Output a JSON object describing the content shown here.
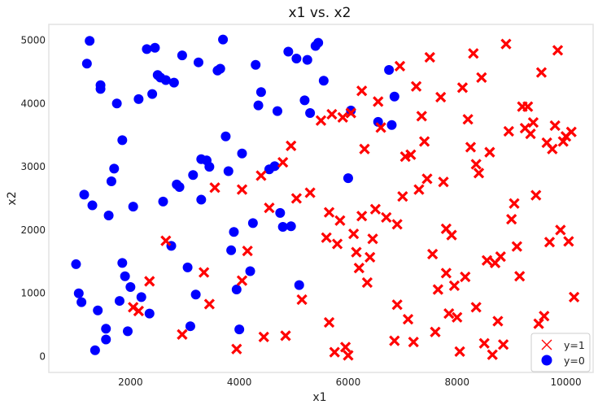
{
  "chart_data": {
    "type": "scatter",
    "title": "x1 vs. x2",
    "xlabel": "x1",
    "ylabel": "x2",
    "xlim": [
      500,
      10500
    ],
    "ylim": [
      -250,
      5250
    ],
    "xticks": [
      2000,
      4000,
      6000,
      8000,
      10000
    ],
    "yticks": [
      0,
      1000,
      2000,
      3000,
      4000,
      5000
    ],
    "grid": false,
    "legend_position": "lower-right",
    "series": [
      {
        "name": "y=1",
        "marker": "x",
        "color": "#ff0000",
        "points": [
          [
            2050,
            780
          ],
          [
            2150,
            720
          ],
          [
            2350,
            1190
          ],
          [
            2650,
            1830
          ],
          [
            2950,
            350
          ],
          [
            3350,
            1330
          ],
          [
            3450,
            830
          ],
          [
            3550,
            2670
          ],
          [
            3950,
            120
          ],
          [
            4050,
            2640
          ],
          [
            4050,
            1200
          ],
          [
            4150,
            1670
          ],
          [
            4400,
            2860
          ],
          [
            4450,
            310
          ],
          [
            4550,
            2350
          ],
          [
            4800,
            3070
          ],
          [
            4850,
            330
          ],
          [
            4950,
            3330
          ],
          [
            5050,
            2500
          ],
          [
            5150,
            900
          ],
          [
            5300,
            2590
          ],
          [
            5500,
            3730
          ],
          [
            5600,
            1880
          ],
          [
            5650,
            2280
          ],
          [
            5650,
            540
          ],
          [
            5700,
            3830
          ],
          [
            5750,
            70
          ],
          [
            5800,
            1780
          ],
          [
            5850,
            2150
          ],
          [
            5900,
            3780
          ],
          [
            5950,
            150
          ],
          [
            6000,
            20
          ],
          [
            6050,
            3850
          ],
          [
            6100,
            1940
          ],
          [
            6150,
            1650
          ],
          [
            6200,
            1400
          ],
          [
            6250,
            2220
          ],
          [
            6250,
            4200
          ],
          [
            6300,
            3280
          ],
          [
            6350,
            1170
          ],
          [
            6400,
            1570
          ],
          [
            6450,
            1860
          ],
          [
            6500,
            2330
          ],
          [
            6550,
            4030
          ],
          [
            6600,
            3620
          ],
          [
            6700,
            2200
          ],
          [
            6850,
            250
          ],
          [
            6900,
            820
          ],
          [
            6900,
            2090
          ],
          [
            6950,
            4590
          ],
          [
            7000,
            2530
          ],
          [
            7050,
            3160
          ],
          [
            7100,
            590
          ],
          [
            7150,
            3190
          ],
          [
            7200,
            230
          ],
          [
            7250,
            4270
          ],
          [
            7300,
            2640
          ],
          [
            7350,
            3800
          ],
          [
            7400,
            3400
          ],
          [
            7450,
            2810
          ],
          [
            7500,
            4730
          ],
          [
            7550,
            1620
          ],
          [
            7600,
            390
          ],
          [
            7650,
            1060
          ],
          [
            7700,
            4100
          ],
          [
            7750,
            2760
          ],
          [
            7800,
            2020
          ],
          [
            7800,
            1320
          ],
          [
            7850,
            680
          ],
          [
            7900,
            1920
          ],
          [
            7950,
            1120
          ],
          [
            8000,
            620
          ],
          [
            8050,
            80
          ],
          [
            8100,
            4250
          ],
          [
            8150,
            1260
          ],
          [
            8200,
            3750
          ],
          [
            8250,
            3310
          ],
          [
            8300,
            4790
          ],
          [
            8350,
            780
          ],
          [
            8350,
            3040
          ],
          [
            8400,
            2900
          ],
          [
            8450,
            4410
          ],
          [
            8500,
            210
          ],
          [
            8550,
            1520
          ],
          [
            8600,
            3230
          ],
          [
            8650,
            30
          ],
          [
            8700,
            1480
          ],
          [
            8750,
            560
          ],
          [
            8800,
            1580
          ],
          [
            8850,
            190
          ],
          [
            8900,
            4940
          ],
          [
            8950,
            3560
          ],
          [
            9000,
            2170
          ],
          [
            9050,
            2420
          ],
          [
            9100,
            1740
          ],
          [
            9150,
            1270
          ],
          [
            9200,
            3950
          ],
          [
            9250,
            3610
          ],
          [
            9300,
            3950
          ],
          [
            9350,
            3520
          ],
          [
            9400,
            3700
          ],
          [
            9450,
            2550
          ],
          [
            9500,
            520
          ],
          [
            9550,
            4490
          ],
          [
            9600,
            640
          ],
          [
            9650,
            3380
          ],
          [
            9700,
            1810
          ],
          [
            9750,
            3280
          ],
          [
            9800,
            3650
          ],
          [
            9850,
            4840
          ],
          [
            9900,
            2000
          ],
          [
            9950,
            3400
          ],
          [
            10000,
            3480
          ],
          [
            10050,
            1820
          ],
          [
            10100,
            3550
          ],
          [
            10150,
            940
          ]
        ]
      },
      {
        "name": "y=0",
        "marker": "o",
        "color": "#0000ff",
        "points": [
          [
            1000,
            1460
          ],
          [
            1050,
            1000
          ],
          [
            1100,
            860
          ],
          [
            1150,
            2560
          ],
          [
            1200,
            4630
          ],
          [
            1250,
            4990
          ],
          [
            1300,
            2390
          ],
          [
            1350,
            100
          ],
          [
            1400,
            730
          ],
          [
            1450,
            4230
          ],
          [
            1450,
            4290
          ],
          [
            1550,
            440
          ],
          [
            1550,
            270
          ],
          [
            1600,
            2230
          ],
          [
            1650,
            2770
          ],
          [
            1700,
            2970
          ],
          [
            1750,
            4000
          ],
          [
            1800,
            880
          ],
          [
            1850,
            3420
          ],
          [
            1850,
            1480
          ],
          [
            1900,
            1270
          ],
          [
            1950,
            400
          ],
          [
            2000,
            1100
          ],
          [
            2050,
            2370
          ],
          [
            2150,
            4070
          ],
          [
            2200,
            940
          ],
          [
            2300,
            4860
          ],
          [
            2350,
            680
          ],
          [
            2400,
            4150
          ],
          [
            2450,
            4880
          ],
          [
            2500,
            4450
          ],
          [
            2550,
            4410
          ],
          [
            2600,
            2450
          ],
          [
            2650,
            4370
          ],
          [
            2750,
            1750
          ],
          [
            2800,
            4330
          ],
          [
            2850,
            2720
          ],
          [
            2900,
            2680
          ],
          [
            2950,
            4760
          ],
          [
            3050,
            1410
          ],
          [
            3100,
            480
          ],
          [
            3150,
            2870
          ],
          [
            3200,
            980
          ],
          [
            3250,
            4650
          ],
          [
            3300,
            3120
          ],
          [
            3300,
            2480
          ],
          [
            3400,
            3100
          ],
          [
            3450,
            3000
          ],
          [
            3600,
            4520
          ],
          [
            3650,
            4550
          ],
          [
            3700,
            5010
          ],
          [
            3750,
            3480
          ],
          [
            3800,
            2930
          ],
          [
            3850,
            1680
          ],
          [
            3900,
            1970
          ],
          [
            3950,
            1060
          ],
          [
            4000,
            430
          ],
          [
            4050,
            3210
          ],
          [
            4200,
            1350
          ],
          [
            4250,
            2110
          ],
          [
            4300,
            4610
          ],
          [
            4350,
            3970
          ],
          [
            4400,
            4180
          ],
          [
            4550,
            2960
          ],
          [
            4650,
            3010
          ],
          [
            4700,
            3880
          ],
          [
            4750,
            2270
          ],
          [
            4800,
            2050
          ],
          [
            4900,
            4820
          ],
          [
            4950,
            2060
          ],
          [
            5050,
            4710
          ],
          [
            5100,
            1130
          ],
          [
            5200,
            4050
          ],
          [
            5250,
            4690
          ],
          [
            5300,
            3850
          ],
          [
            5400,
            4910
          ],
          [
            5450,
            4960
          ],
          [
            5550,
            4360
          ],
          [
            6000,
            2820
          ],
          [
            6050,
            3890
          ],
          [
            6550,
            3710
          ],
          [
            6750,
            4530
          ],
          [
            6800,
            3660
          ],
          [
            6850,
            4110
          ]
        ]
      }
    ]
  }
}
